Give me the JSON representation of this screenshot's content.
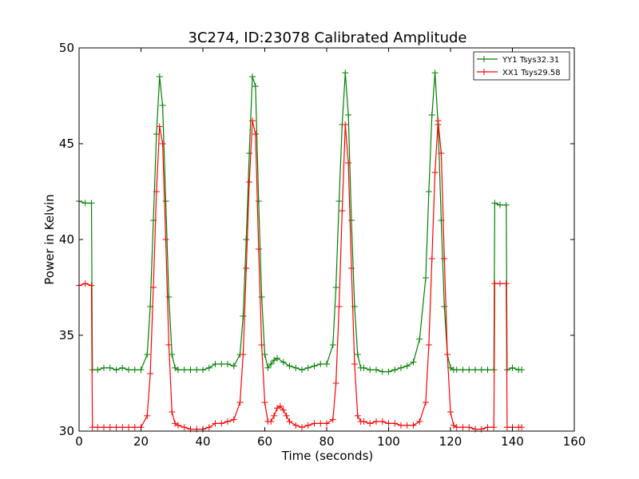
{
  "chart_data": {
    "type": "line",
    "title": "3C274, ID:23078 Calibrated Amplitude",
    "xlabel": "Time (seconds)",
    "ylabel": "Power in Kelvin",
    "xlim": [
      0,
      160
    ],
    "ylim": [
      30,
      50
    ],
    "xticks": [
      "0",
      "20",
      "40",
      "60",
      "80",
      "100",
      "120",
      "140",
      "160"
    ],
    "yticks": [
      "30",
      "35",
      "40",
      "45",
      "50"
    ],
    "grid": false,
    "legend": "top-right",
    "series": [
      {
        "name": "YY1 Tsys32.31",
        "color": "#008000",
        "marker": "+",
        "x": [
          0,
          2,
          4,
          4.3,
          6,
          8,
          10,
          12,
          14,
          16,
          18,
          20,
          22,
          23,
          24,
          25,
          26,
          27,
          28,
          29,
          30,
          31,
          32,
          34,
          36,
          38,
          40,
          42,
          44,
          46,
          48,
          50,
          52,
          53,
          54,
          55,
          56,
          57,
          58,
          59,
          60,
          61,
          62,
          63,
          64,
          66,
          68,
          70,
          72,
          74,
          76,
          78,
          80,
          82,
          83,
          84,
          85,
          86,
          87,
          88,
          89,
          90,
          91,
          92,
          94,
          96,
          98,
          100,
          102,
          104,
          106,
          108,
          110,
          112,
          113,
          114,
          115,
          116,
          117,
          118,
          119,
          120,
          121,
          122,
          124,
          126,
          128,
          130,
          132,
          134,
          134.3,
          136,
          138,
          138.3,
          140,
          142,
          143
        ],
        "values": [
          42.0,
          41.9,
          41.9,
          33.2,
          33.2,
          33.3,
          33.3,
          33.2,
          33.3,
          33.2,
          33.2,
          33.2,
          34.0,
          36.5,
          41.0,
          45.5,
          48.5,
          47.0,
          42.0,
          37.0,
          34.0,
          33.3,
          33.2,
          33.2,
          33.2,
          33.2,
          33.2,
          33.3,
          33.5,
          33.5,
          33.5,
          33.4,
          34.0,
          36.0,
          40.0,
          44.5,
          48.5,
          48.0,
          42.0,
          37.0,
          34.0,
          33.3,
          33.5,
          33.7,
          33.8,
          33.6,
          33.4,
          33.3,
          33.2,
          33.3,
          33.4,
          33.5,
          33.5,
          34.5,
          37.5,
          42.0,
          46.0,
          48.7,
          46.5,
          41.0,
          36.5,
          34.0,
          33.3,
          33.3,
          33.2,
          33.2,
          33.1,
          33.1,
          33.2,
          33.3,
          33.4,
          33.6,
          34.8,
          38.0,
          42.5,
          46.5,
          48.7,
          46.0,
          41.0,
          36.5,
          34.0,
          33.3,
          33.2,
          33.2,
          33.2,
          33.2,
          33.2,
          33.2,
          33.2,
          33.2,
          41.9,
          41.8,
          41.8,
          33.2,
          33.3,
          33.2,
          33.2
        ]
      },
      {
        "name": "XX1 Tsys29.58",
        "color": "#ff0000",
        "marker": "+",
        "x": [
          0,
          2,
          4,
          4.3,
          6,
          8,
          10,
          12,
          14,
          16,
          18,
          20,
          22,
          23,
          24,
          25,
          26,
          27,
          28,
          29,
          30,
          31,
          32,
          34,
          36,
          38,
          40,
          42,
          44,
          46,
          48,
          50,
          52,
          53,
          54,
          55,
          56,
          57,
          58,
          59,
          60,
          61,
          62,
          63,
          64,
          65,
          66,
          67,
          68,
          70,
          72,
          74,
          76,
          78,
          80,
          82,
          83,
          84,
          85,
          86,
          87,
          88,
          89,
          90,
          91,
          92,
          94,
          96,
          98,
          100,
          102,
          104,
          106,
          108,
          110,
          112,
          113,
          114,
          115,
          116,
          117,
          118,
          119,
          120,
          121,
          122,
          124,
          126,
          128,
          130,
          132,
          134,
          134.3,
          136,
          138,
          138.3,
          140,
          142,
          143
        ],
        "values": [
          37.6,
          37.7,
          37.6,
          30.2,
          30.2,
          30.2,
          30.2,
          30.2,
          30.2,
          30.2,
          30.2,
          30.2,
          30.8,
          33.0,
          37.5,
          42.5,
          45.9,
          45.0,
          40.0,
          34.5,
          31.0,
          30.4,
          30.3,
          30.2,
          30.1,
          30.1,
          30.1,
          30.2,
          30.4,
          30.4,
          30.5,
          30.6,
          31.5,
          34.0,
          38.5,
          43.0,
          46.2,
          45.5,
          39.5,
          34.5,
          31.5,
          30.5,
          30.5,
          30.8,
          31.2,
          31.3,
          31.1,
          30.8,
          30.5,
          30.3,
          30.2,
          30.3,
          30.4,
          30.4,
          30.4,
          30.6,
          32.5,
          36.5,
          41.5,
          46.0,
          44.0,
          38.5,
          33.5,
          30.8,
          30.5,
          30.5,
          30.4,
          30.5,
          30.5,
          30.4,
          30.4,
          30.3,
          30.3,
          30.3,
          30.5,
          31.5,
          34.5,
          39.0,
          43.5,
          46.2,
          44.5,
          39.0,
          34.0,
          31.0,
          30.3,
          30.2,
          30.2,
          30.2,
          30.1,
          30.1,
          30.2,
          30.2,
          37.7,
          37.7,
          37.7,
          30.2,
          30.2,
          30.2,
          30.2
        ]
      }
    ]
  }
}
